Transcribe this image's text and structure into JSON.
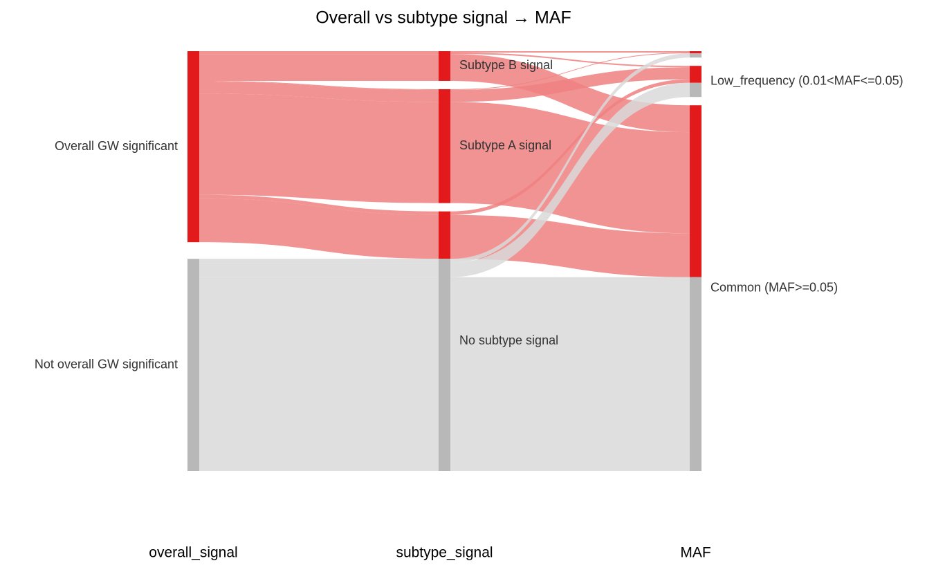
{
  "chart_data": {
    "type": "sankey",
    "title": "Overall vs subtype signal → MAF",
    "stages": [
      {
        "name": "overall_signal",
        "nodes": [
          "Overall GW significant",
          "Not overall GW significant"
        ]
      },
      {
        "name": "subtype_signal",
        "nodes": [
          "Subtype B signal",
          "Subtype A signal",
          "No subtype signal"
        ]
      },
      {
        "name": "MAF",
        "nodes": [
          null,
          "Low_frequency (0.01<MAF<=0.05)",
          "Common (MAF>=0.05)"
        ]
      }
    ],
    "link_colors": [
      "#f08080",
      "#d9d9d9"
    ],
    "node_colors": [
      "#e31a1c",
      "#b8b8b8"
    ],
    "flows": [
      {
        "overall": "Overall GW significant",
        "subtype": "Subtype B signal",
        "maf": null,
        "value": 2
      },
      {
        "overall": "Overall GW significant",
        "subtype": "Subtype B signal",
        "maf": "Low_frequency (0.01<MAF<=0.05)",
        "value": 2
      },
      {
        "overall": "Overall GW significant",
        "subtype": "Subtype B signal",
        "maf": "Common (MAF>=0.05)",
        "value": 38
      },
      {
        "overall": "Overall GW significant",
        "subtype": "Subtype A signal",
        "maf": null,
        "value": 1
      },
      {
        "overall": "Overall GW significant",
        "subtype": "Subtype A signal",
        "maf": "Low_frequency (0.01<MAF<=0.05)",
        "value": 17
      },
      {
        "overall": "Overall GW significant",
        "subtype": "Subtype A signal",
        "maf": "Common (MAF>=0.05)",
        "value": 143
      },
      {
        "overall": "Overall GW significant",
        "subtype": "No subtype signal",
        "maf": "Low_frequency (0.01<MAF<=0.05)",
        "value": 5
      },
      {
        "overall": "Overall GW significant",
        "subtype": "No subtype signal",
        "maf": "Common (MAF>=0.05)",
        "value": 62
      },
      {
        "overall": "Not overall GW significant",
        "subtype": "No subtype signal",
        "maf": null,
        "value": 6
      },
      {
        "overall": "Not overall GW significant",
        "subtype": "No subtype signal",
        "maf": "Low_frequency (0.01<MAF<=0.05)",
        "value": 20
      },
      {
        "overall": "Not overall GW significant",
        "subtype": "No subtype signal",
        "maf": "Common (MAF>=0.05)",
        "value": 274
      }
    ]
  }
}
